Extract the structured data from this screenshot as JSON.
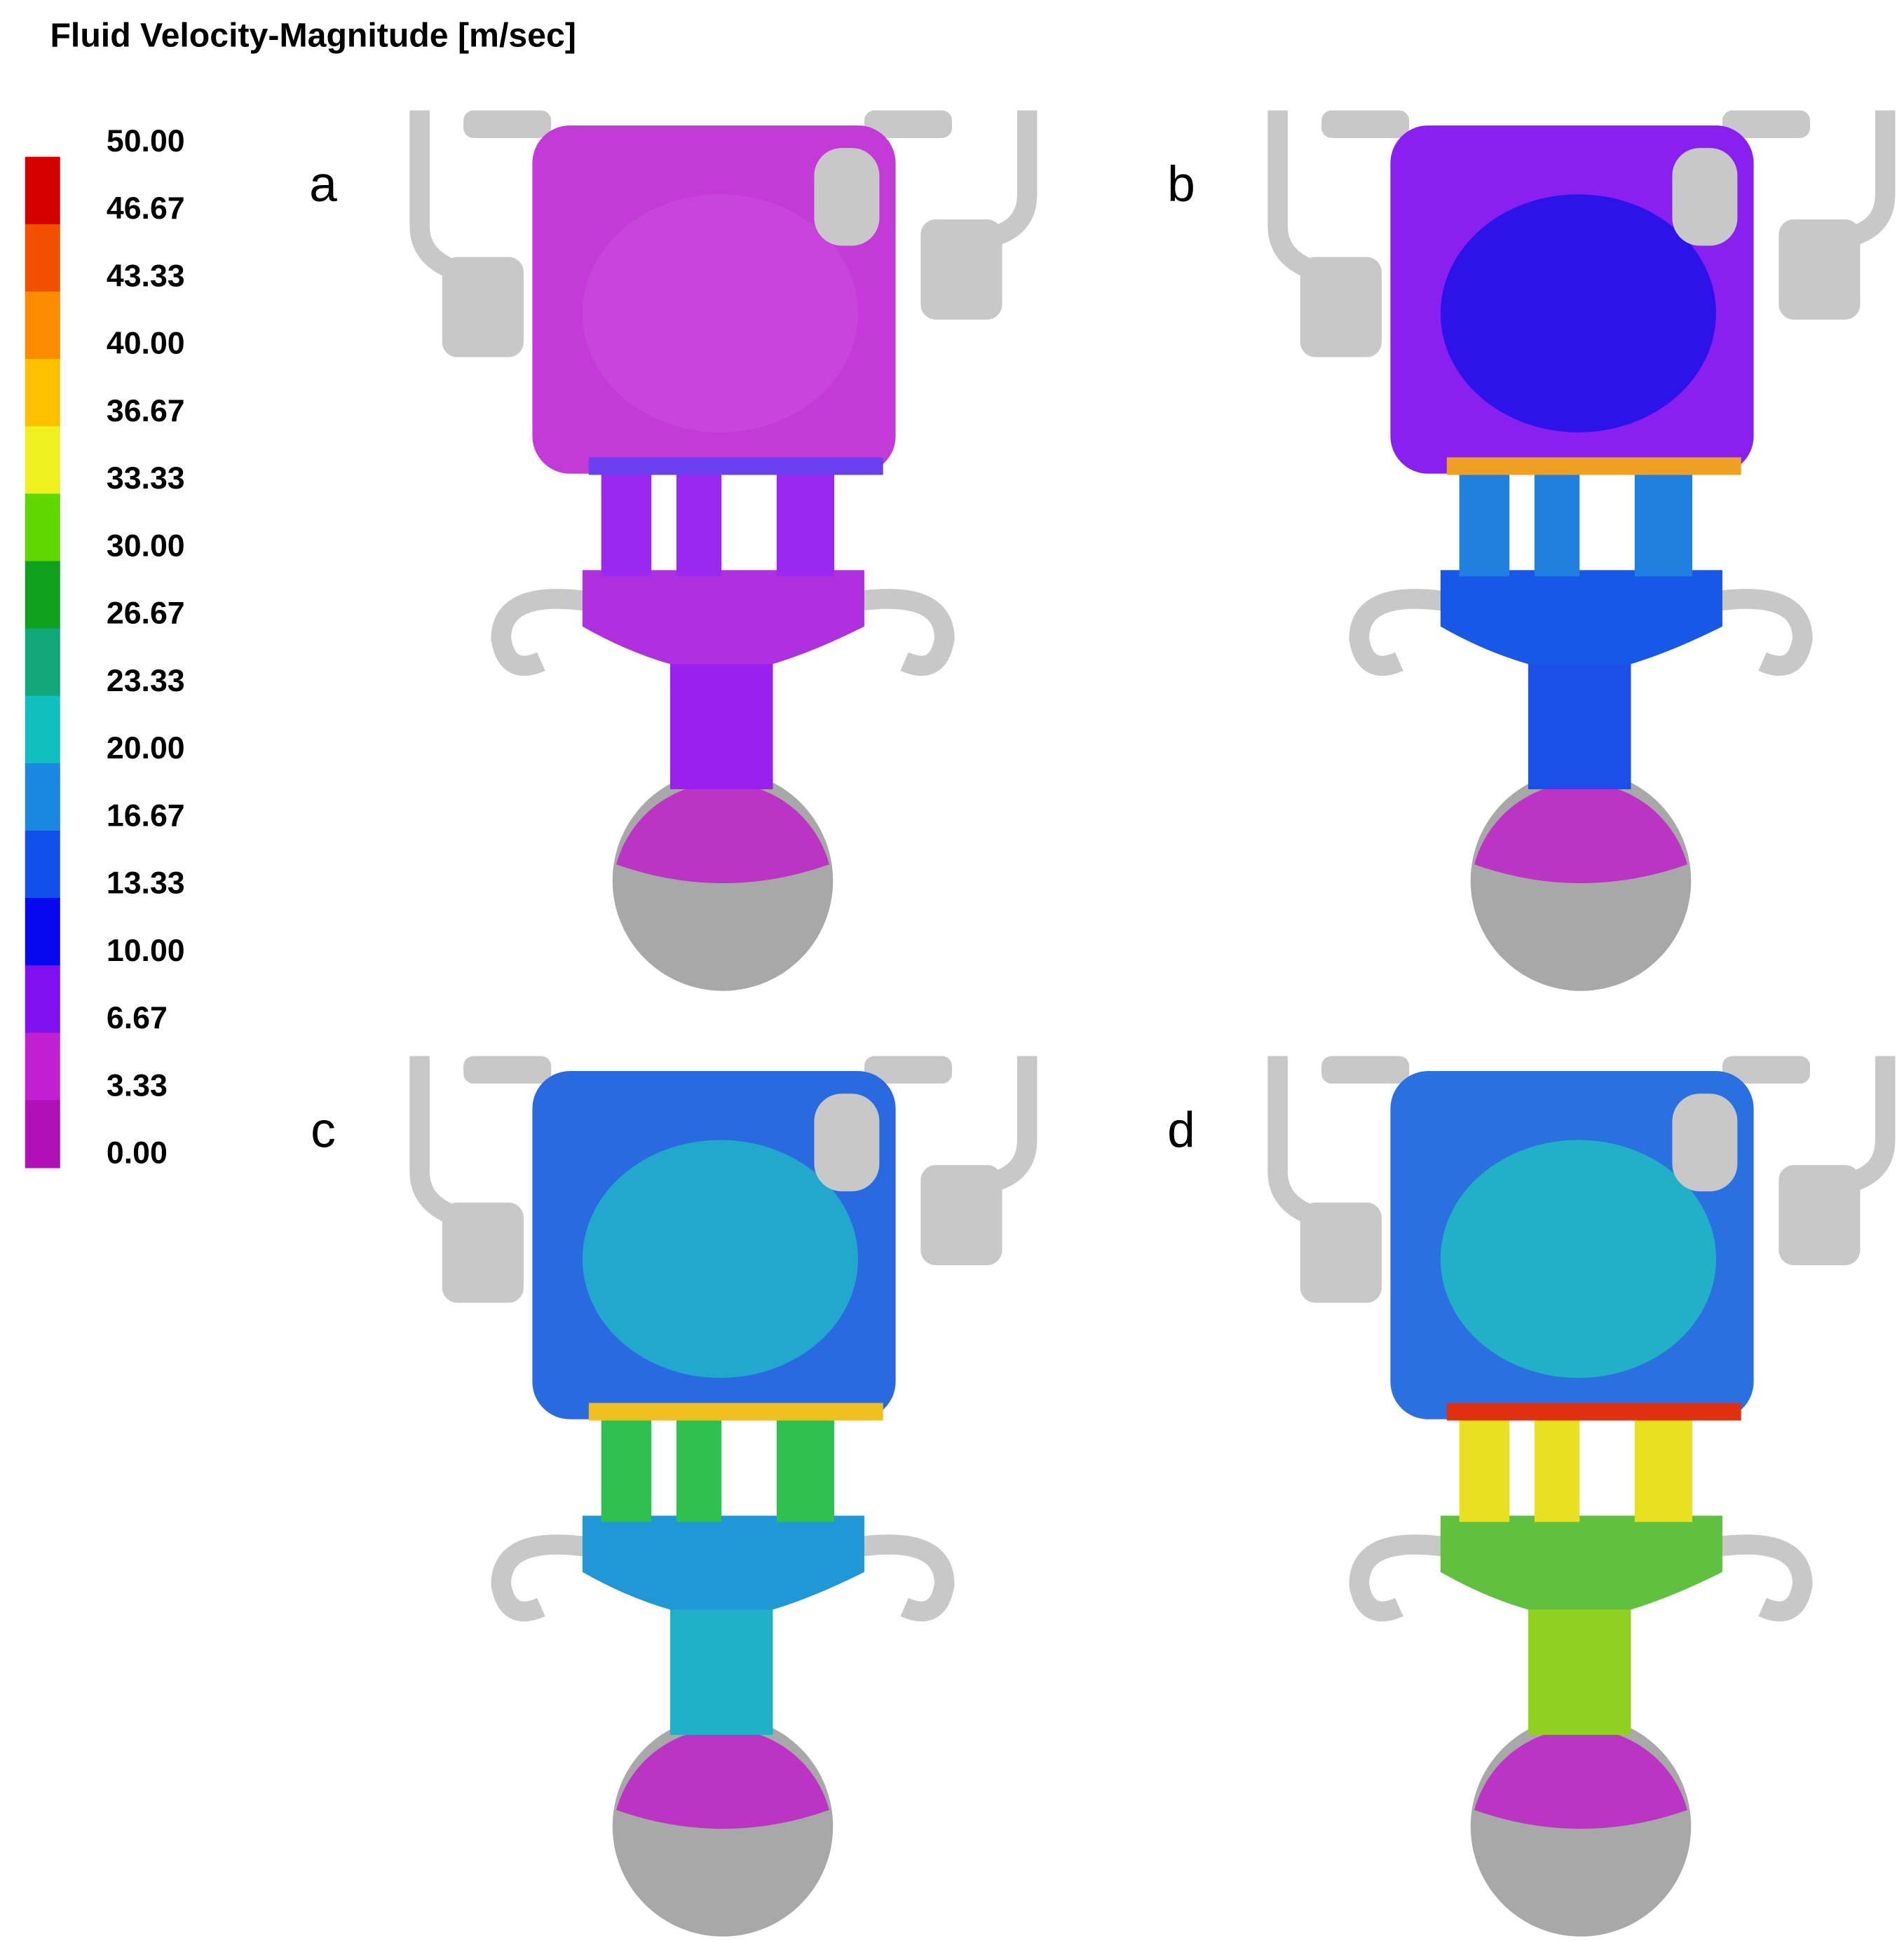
{
  "title": "Fluid  Velocity-Magnitude  [m/sec]",
  "legend": {
    "levels": [
      "50.00",
      "46.67",
      "43.33",
      "40.00",
      "36.67",
      "33.33",
      "30.00",
      "26.67",
      "23.33",
      "20.00",
      "16.67",
      "13.33",
      "10.00",
      "6.67",
      "3.33",
      "0.00"
    ],
    "colors": [
      "#d40000",
      "#f05000",
      "#ff8c00",
      "#ffc000",
      "#f0f020",
      "#60d800",
      "#10a020",
      "#10a878",
      "#10c0c0",
      "#1a88e0",
      "#1050e8",
      "#0808f0",
      "#8010f0",
      "#c020d0",
      "#b010b8"
    ]
  },
  "panels": [
    {
      "label": "a"
    },
    {
      "label": "b"
    },
    {
      "label": "c"
    },
    {
      "label": "d"
    }
  ]
}
